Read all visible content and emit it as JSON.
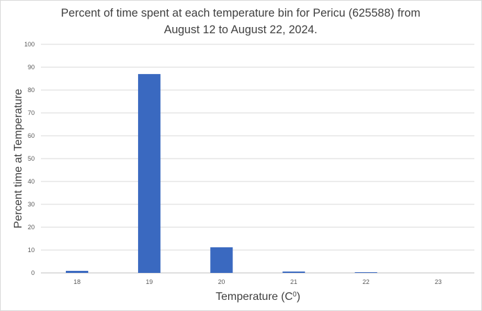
{
  "chart_data": {
    "type": "bar",
    "title_lines": [
      "Percent of time spent at each temperature bin for Pericu (625588) from",
      "August 12 to August 22, 2024."
    ],
    "xlabel": "Temperature (C",
    "xlabel_superscript": "0",
    "xlabel_suffix": ")",
    "ylabel": "Percent time at Temperature",
    "categories": [
      "18",
      "19",
      "20",
      "21",
      "22",
      "23"
    ],
    "values": [
      0.9,
      87.0,
      11.2,
      0.6,
      0.3,
      0.0
    ],
    "ylim": [
      0,
      100
    ],
    "yticks": [
      0,
      10,
      20,
      30,
      40,
      50,
      60,
      70,
      80,
      90,
      100
    ],
    "grid": true,
    "legend": "none",
    "bar_color": "#3a69c0",
    "grid_color": "#d9d9d9"
  }
}
